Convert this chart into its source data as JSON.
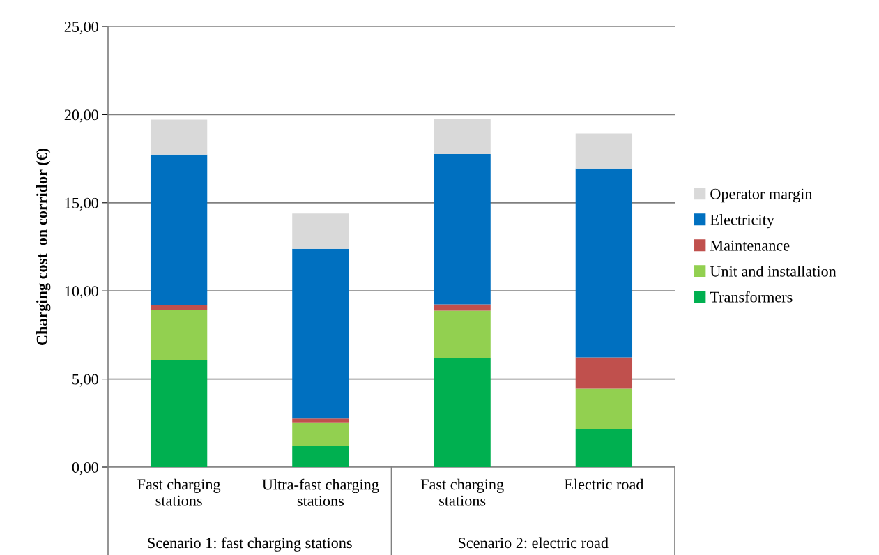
{
  "chart_data": {
    "type": "bar",
    "stacked": true,
    "ylabel": "Charging cost  on corridor (€)",
    "categories": [
      "Fast charging\nstations",
      "Ultra-fast charging\nstations",
      "Fast charging\nstations",
      "Electric road"
    ],
    "series": [
      {
        "name": "Transformers",
        "color": "#00b050",
        "values": [
          6.07,
          1.23,
          6.21,
          2.18
        ]
      },
      {
        "name": "Unit and installation",
        "color": "#92d050",
        "values": [
          2.85,
          1.31,
          2.67,
          2.27
        ]
      },
      {
        "name": "Maintenance",
        "color": "#c0504d",
        "values": [
          0.29,
          0.22,
          0.36,
          1.78
        ]
      },
      {
        "name": "Electricity",
        "color": "#0070c0",
        "values": [
          8.52,
          9.63,
          8.52,
          10.71
        ]
      },
      {
        "name": "Operator margin",
        "color": "#d9d9d9",
        "values": [
          1.99,
          2.0,
          2.0,
          1.99
        ]
      }
    ],
    "annotations": [
      "Scenario 1: fast charging stations",
      "Scenario 2: electric road"
    ],
    "ylim": [
      0,
      25
    ],
    "yticks": [
      {
        "value": 0,
        "label": "0,00"
      },
      {
        "value": 5,
        "label": "5,00"
      },
      {
        "value": 10,
        "label": "10,00"
      },
      {
        "value": 15,
        "label": "15,00"
      },
      {
        "value": 20,
        "label": "20,00"
      },
      {
        "value": 25,
        "label": "25,00"
      }
    ],
    "grid": "y",
    "legend": "right"
  }
}
